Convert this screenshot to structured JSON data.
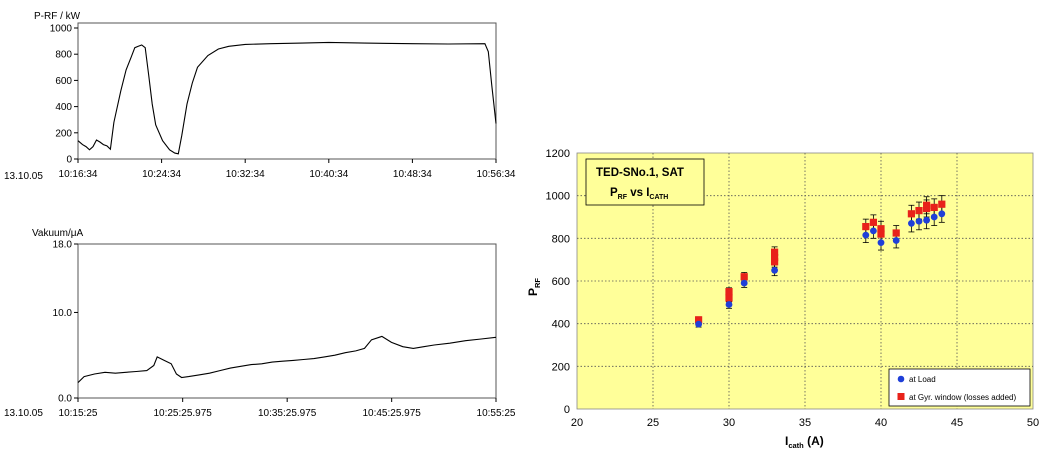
{
  "chart_data": [
    {
      "type": "line",
      "ylabel": "P-RF / kW",
      "date_label": "13.10.05",
      "x_ticks": [
        "10:16:34",
        "10:24:34",
        "10:32:34",
        "10:40:34",
        "10:48:34",
        "10:56:34"
      ],
      "y_ticks": [
        0,
        200,
        400,
        600,
        800,
        1000
      ],
      "xlim": [
        "10:16:34",
        "10:56:34"
      ],
      "ylim": [
        0,
        1000
      ],
      "grid": false,
      "series": [
        {
          "values": [
            [
              "10:16:34",
              140
            ],
            [
              "10:17:00",
              110
            ],
            [
              "10:17:20",
              95
            ],
            [
              "10:17:40",
              70
            ],
            [
              "10:18:00",
              95
            ],
            [
              "10:18:20",
              145
            ],
            [
              "10:18:40",
              130
            ],
            [
              "10:19:00",
              110
            ],
            [
              "10:19:20",
              100
            ],
            [
              "10:19:40",
              75
            ],
            [
              "10:20:00",
              280
            ],
            [
              "10:20:40",
              520
            ],
            [
              "10:21:10",
              680
            ],
            [
              "10:21:40",
              780
            ],
            [
              "10:22:00",
              850
            ],
            [
              "10:22:20",
              860
            ],
            [
              "10:22:40",
              870
            ],
            [
              "10:23:00",
              850
            ],
            [
              "10:23:20",
              640
            ],
            [
              "10:23:40",
              420
            ],
            [
              "10:24:00",
              260
            ],
            [
              "10:24:40",
              140
            ],
            [
              "10:25:20",
              70
            ],
            [
              "10:25:50",
              45
            ],
            [
              "10:26:10",
              40
            ],
            [
              "10:26:30",
              180
            ],
            [
              "10:27:00",
              420
            ],
            [
              "10:27:30",
              580
            ],
            [
              "10:28:00",
              700
            ],
            [
              "10:29:00",
              790
            ],
            [
              "10:30:00",
              840
            ],
            [
              "10:31:00",
              860
            ],
            [
              "10:32:34",
              875
            ],
            [
              "10:35:00",
              880
            ],
            [
              "10:38:00",
              885
            ],
            [
              "10:40:34",
              890
            ],
            [
              "10:44:00",
              885
            ],
            [
              "10:48:34",
              880
            ],
            [
              "10:52:00",
              878
            ],
            [
              "10:55:30",
              880
            ],
            [
              "10:55:50",
              820
            ],
            [
              "10:56:10",
              560
            ],
            [
              "10:56:34",
              270
            ]
          ]
        }
      ]
    },
    {
      "type": "line",
      "ylabel": "Vakuum/μA",
      "date_label": "13.10.05",
      "x_ticks": [
        "10:15:25",
        "10:25:25.975",
        "10:35:25.975",
        "10:45:25.975",
        "10:55:25"
      ],
      "y_ticks": [
        "0.0",
        "10.0",
        "18.0"
      ],
      "xlim": [
        "10:15:25",
        "10:55:25"
      ],
      "ylim": [
        0,
        18
      ],
      "grid": false,
      "series": [
        {
          "values": [
            [
              "10:15:25",
              1.8
            ],
            [
              "10:16:00",
              2.5
            ],
            [
              "10:17:00",
              2.8
            ],
            [
              "10:18:00",
              3.0
            ],
            [
              "10:19:00",
              2.9
            ],
            [
              "10:20:00",
              3.0
            ],
            [
              "10:21:00",
              3.1
            ],
            [
              "10:22:00",
              3.2
            ],
            [
              "10:22:40",
              3.8
            ],
            [
              "10:23:00",
              4.8
            ],
            [
              "10:23:40",
              4.4
            ],
            [
              "10:24:20",
              4.0
            ],
            [
              "10:24:50",
              2.8
            ],
            [
              "10:25:20",
              2.4
            ],
            [
              "10:26:00",
              2.5
            ],
            [
              "10:27:00",
              2.7
            ],
            [
              "10:28:00",
              2.9
            ],
            [
              "10:29:00",
              3.2
            ],
            [
              "10:30:00",
              3.5
            ],
            [
              "10:31:00",
              3.7
            ],
            [
              "10:32:00",
              3.9
            ],
            [
              "10:33:00",
              4.0
            ],
            [
              "10:34:00",
              4.2
            ],
            [
              "10:35:00",
              4.3
            ],
            [
              "10:36:00",
              4.4
            ],
            [
              "10:37:00",
              4.5
            ],
            [
              "10:38:00",
              4.6
            ],
            [
              "10:39:00",
              4.8
            ],
            [
              "10:40:00",
              5.0
            ],
            [
              "10:41:00",
              5.3
            ],
            [
              "10:42:00",
              5.5
            ],
            [
              "10:42:50",
              5.8
            ],
            [
              "10:43:30",
              6.8
            ],
            [
              "10:44:30",
              7.2
            ],
            [
              "10:45:25",
              6.5
            ],
            [
              "10:46:30",
              6.0
            ],
            [
              "10:47:30",
              5.8
            ],
            [
              "10:48:30",
              6.0
            ],
            [
              "10:49:30",
              6.2
            ],
            [
              "10:51:00",
              6.4
            ],
            [
              "10:52:30",
              6.7
            ],
            [
              "10:54:00",
              6.9
            ],
            [
              "10:55:25",
              7.1
            ]
          ]
        }
      ]
    },
    {
      "type": "scatter",
      "title": "TED-SNo.1, SAT",
      "subtitle": {
        "p": "P",
        "p_sub": "RF",
        "mid": " vs ",
        "i": "I",
        "i_sub": "CATH"
      },
      "xlabel": {
        "main": "I",
        "sub": "cath",
        "unit": " (A)"
      },
      "ylabel": {
        "main": "P",
        "sub": "RF"
      },
      "xlim": [
        20,
        50
      ],
      "ylim": [
        0,
        1200
      ],
      "x_ticks": [
        20,
        25,
        30,
        35,
        40,
        45,
        50
      ],
      "y_ticks": [
        0,
        200,
        400,
        600,
        800,
        1000,
        1200
      ],
      "grid": true,
      "legend_position": "bottom-right",
      "colors": {
        "plot_bg": "#ffff99",
        "load": "#1f3fd8",
        "window": "#e8221a"
      },
      "series": [
        {
          "name": "at Load",
          "marker": "circle",
          "points": [
            [
              28,
              398,
              14
            ],
            [
              30,
              490,
              18
            ],
            [
              31,
              590,
              20
            ],
            [
              33,
              650,
              25
            ],
            [
              39,
              815,
              35
            ],
            [
              39.5,
              835,
              35
            ],
            [
              40,
              780,
              35
            ],
            [
              41,
              790,
              35
            ],
            [
              42,
              870,
              40
            ],
            [
              42.5,
              880,
              40
            ],
            [
              43,
              885,
              40
            ],
            [
              43.5,
              900,
              40
            ],
            [
              44,
              915,
              40
            ]
          ]
        },
        {
          "name": "at Gyr. window (losses added)",
          "marker": "square",
          "points": [
            [
              28,
              418,
              14
            ],
            [
              30,
              520,
              18
            ],
            [
              30,
              550,
              18
            ],
            [
              31,
              620,
              20
            ],
            [
              33,
              690,
              25
            ],
            [
              33,
              710,
              25
            ],
            [
              33,
              735,
              25
            ],
            [
              39,
              855,
              35
            ],
            [
              39.5,
              875,
              35
            ],
            [
              40,
              820,
              35
            ],
            [
              40,
              845,
              35
            ],
            [
              41,
              825,
              35
            ],
            [
              42,
              915,
              40
            ],
            [
              42.5,
              930,
              40
            ],
            [
              43,
              940,
              40
            ],
            [
              43,
              955,
              40
            ],
            [
              43.5,
              945,
              40
            ],
            [
              44,
              960,
              40
            ]
          ]
        }
      ]
    }
  ]
}
